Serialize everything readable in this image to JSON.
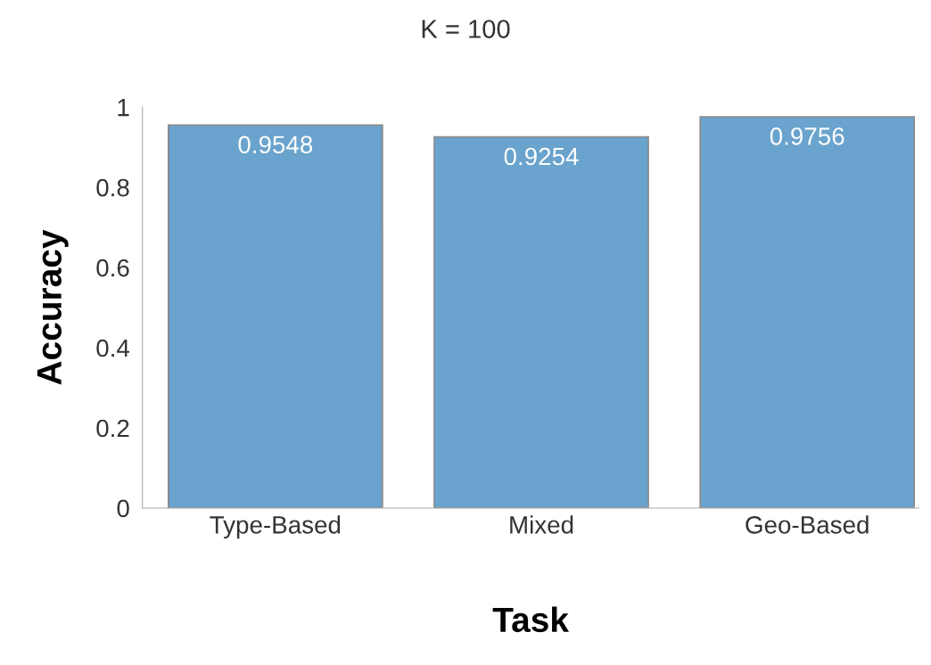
{
  "chart_data": {
    "type": "bar",
    "title": "K = 100",
    "xlabel": "Task",
    "ylabel": "Accuracy",
    "categories": [
      "Type-Based",
      "Mixed",
      "Geo-Based"
    ],
    "values": [
      0.9548,
      0.9254,
      0.9756
    ],
    "color": "#6aa3cd",
    "ylim": [
      0,
      1
    ],
    "yticks": [
      0,
      0.2,
      0.4,
      0.6,
      0.8,
      1
    ],
    "data_labels": true,
    "grid": false,
    "legend": false
  }
}
